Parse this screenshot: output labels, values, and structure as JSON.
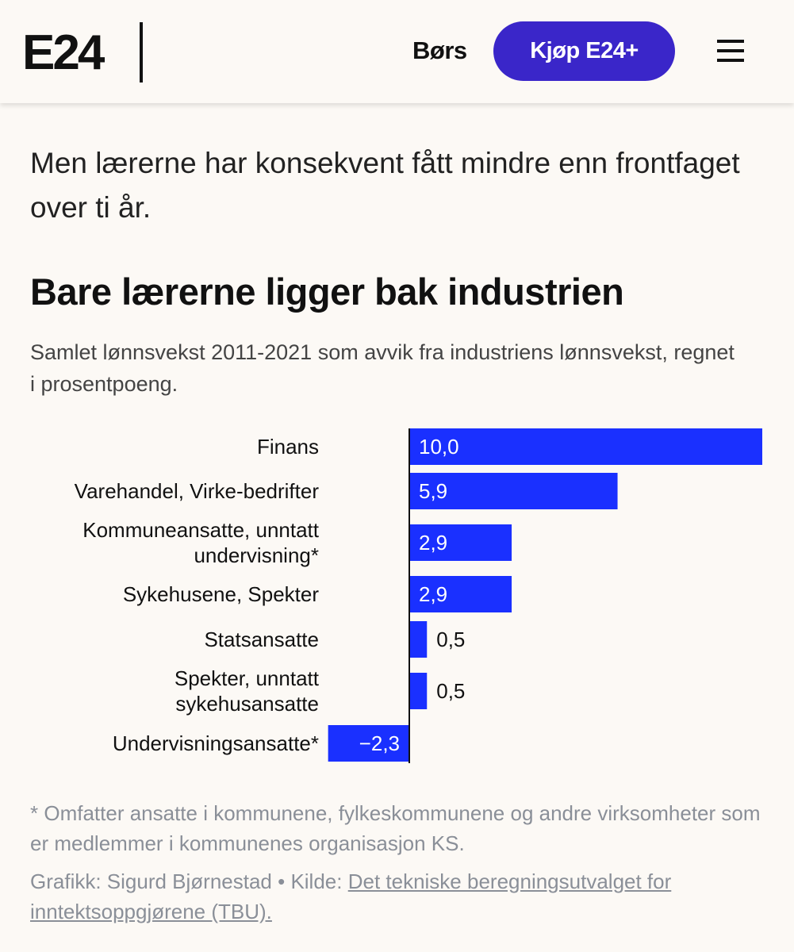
{
  "header": {
    "logo": "E24",
    "nav_bors": "Børs",
    "buy_button": "Kjøp E24+",
    "menu_icon": "hamburger-menu-icon"
  },
  "article": {
    "lead": "Men lærerne har konsekvent fått mindre enn frontfaget over ti år."
  },
  "colors": {
    "bar": "#1a30ff",
    "button": "#3a26c9",
    "background": "#fcf9f5"
  },
  "chart_data": {
    "type": "bar",
    "orientation": "horizontal",
    "title": "Bare lærerne ligger bak industrien",
    "subtitle": "Samlet lønnsvekst 2011-2021 som avvik fra industriens lønnsvekst, regnet i prosentpoeng.",
    "categories": [
      [
        "Finans"
      ],
      [
        "Varehandel, Virke-bedrifter"
      ],
      [
        "Kommuneansatte, unntatt",
        "undervisning*"
      ],
      [
        "Sykehusene, Spekter"
      ],
      [
        "Statsansatte"
      ],
      [
        "Spekter, unntatt",
        "sykehusansatte"
      ],
      [
        "Undervisningsansatte*"
      ]
    ],
    "values": [
      10.0,
      5.9,
      2.9,
      2.9,
      0.5,
      0.5,
      -2.3
    ],
    "value_labels": [
      "10,0",
      "5,9",
      "2,9",
      "2,9",
      "0,5",
      "0,5",
      "−2,3"
    ],
    "xlim": [
      -2.3,
      10.0
    ],
    "grid": false,
    "xlabel": "",
    "ylabel": ""
  },
  "footnote": "* Omfatter ansatte i kommunene, fylkeskommunene og andre virksomheter som er medlemmer i kommunenes organisasjon KS.",
  "credit": {
    "prefix": "Grafikk: Sigurd Bjørnestad • Kilde: ",
    "source_link": "Det tekniske beregningsutvalget for inntektsoppgjørene (TBU)."
  }
}
